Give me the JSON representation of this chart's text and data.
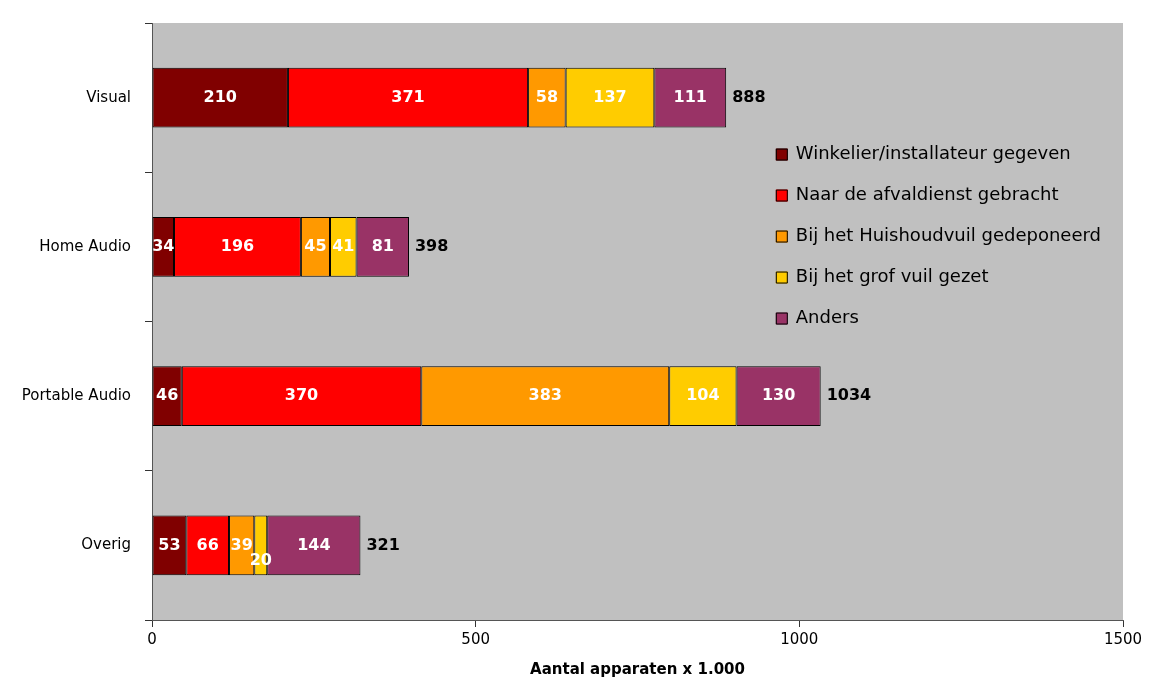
{
  "chart_data": {
    "type": "bar",
    "orientation": "horizontal",
    "stacked": true,
    "categories": [
      "Visual",
      "Home Audio",
      "Portable Audio",
      "Overig"
    ],
    "series": [
      {
        "name": "Winkelier/installateur gegeven",
        "color": "#800000",
        "values": [
          210,
          34,
          46,
          53
        ]
      },
      {
        "name": "Naar de afvaldienst gebracht",
        "color": "#ff0000",
        "values": [
          371,
          196,
          370,
          66
        ]
      },
      {
        "name": "Bij het Huishoudvuil gedeponeerd",
        "color": "#ff9900",
        "values": [
          58,
          45,
          383,
          39
        ]
      },
      {
        "name": "Bij het grof vuil gezet",
        "color": "#ffcc00",
        "values": [
          137,
          41,
          104,
          20
        ]
      },
      {
        "name": "Anders",
        "color": "#993366",
        "values": [
          111,
          81,
          130,
          144
        ]
      }
    ],
    "totals": [
      "888",
      "398",
      "1034",
      "321"
    ],
    "xlabel": "Aantal apparaten x 1.000",
    "xlim": [
      0,
      1500
    ],
    "xticks": [
      0,
      500,
      1000,
      1500
    ],
    "grid": false,
    "legend": "right",
    "data_labels": true
  }
}
